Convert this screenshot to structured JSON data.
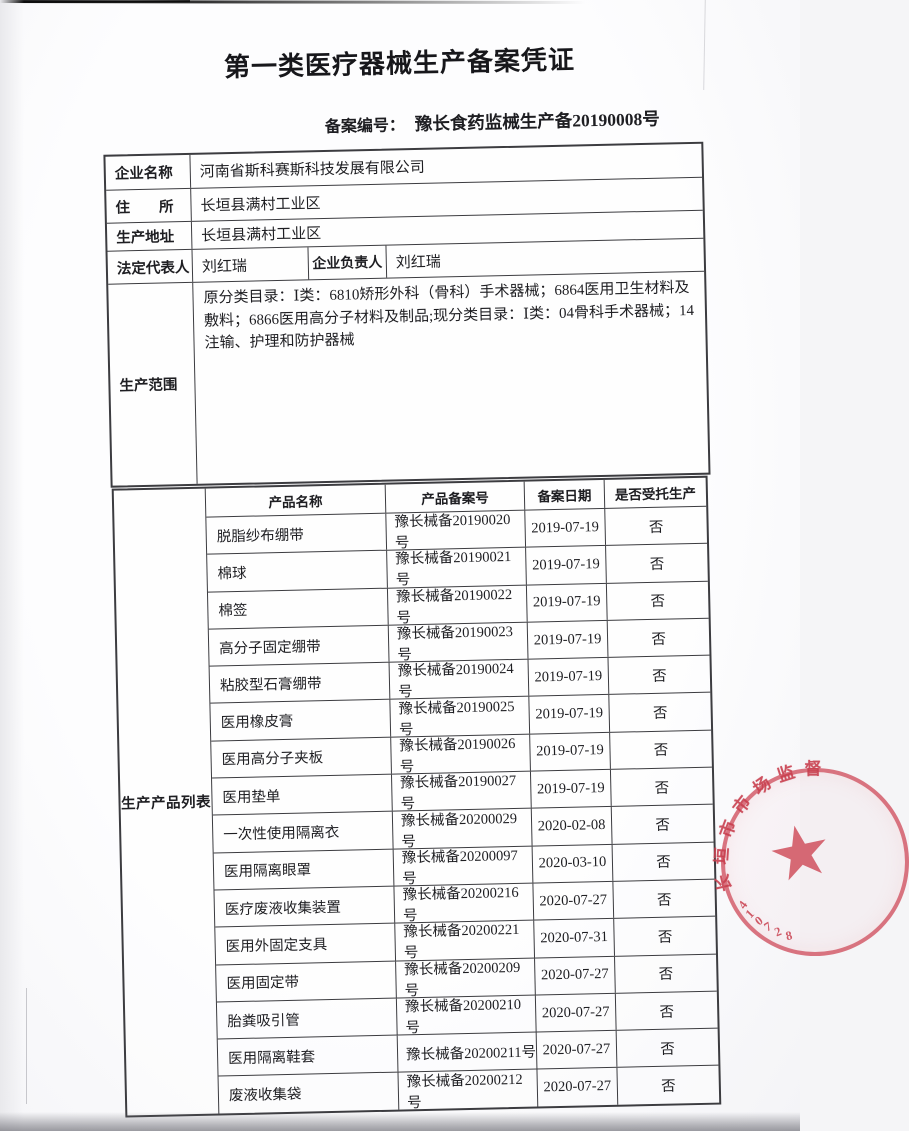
{
  "title": "第一类医疗器械生产备案凭证",
  "record_number": {
    "label": "备案编号：",
    "value": "豫长食药监械生产备20190008号"
  },
  "info_table": {
    "rows": {
      "company": {
        "label": "企业名称",
        "value": "河南省斯科赛斯科技发展有限公司"
      },
      "address": {
        "label": "住　　所",
        "value": "长垣县满村工业区"
      },
      "production_address": {
        "label": "生产地址",
        "value": "长垣县满村工业区"
      },
      "representative": {
        "label": "法定代表人",
        "value": "刘红瑞",
        "label2": "企业负责人",
        "value2": "刘红瑞"
      },
      "scope": {
        "label": "生产范围",
        "value": "原分类目录：Ⅰ类：6810矫形外科（骨科）手术器械；6864医用卫生材料及敷料；6866医用高分子材料及制品;现分类目录：Ⅰ类：04骨科手术器械；14注输、护理和防护器械"
      }
    }
  },
  "product_table": {
    "side_label": "生产产品列表",
    "headers": [
      "产品名称",
      "产品备案号",
      "备案日期",
      "是否受托生产"
    ],
    "rows": [
      [
        "脱脂纱布绷带",
        "豫长械备20190020号",
        "2019-07-19",
        "否"
      ],
      [
        "棉球",
        "豫长械备20190021号",
        "2019-07-19",
        "否"
      ],
      [
        "棉签",
        "豫长械备20190022号",
        "2019-07-19",
        "否"
      ],
      [
        "高分子固定绷带",
        "豫长械备20190023号",
        "2019-07-19",
        "否"
      ],
      [
        "粘胶型石膏绷带",
        "豫长械备20190024号",
        "2019-07-19",
        "否"
      ],
      [
        "医用橡皮膏",
        "豫长械备20190025号",
        "2019-07-19",
        "否"
      ],
      [
        "医用高分子夹板",
        "豫长械备20190026号",
        "2019-07-19",
        "否"
      ],
      [
        "医用垫单",
        "豫长械备20190027号",
        "2019-07-19",
        "否"
      ],
      [
        "一次性使用隔离衣",
        "豫长械备20200029号",
        "2020-02-08",
        "否"
      ],
      [
        "医用隔离眼罩",
        "豫长械备20200097号",
        "2020-03-10",
        "否"
      ],
      [
        "医疗废液收集装置",
        "豫长械备20200216号",
        "2020-07-27",
        "否"
      ],
      [
        "医用外固定支具",
        "豫长械备20200221号",
        "2020-07-31",
        "否"
      ],
      [
        "医用固定带",
        "豫长械备20200209号",
        "2020-07-27",
        "否"
      ],
      [
        "胎粪吸引管",
        "豫长械备20200210号",
        "2020-07-27",
        "否"
      ],
      [
        "医用隔离鞋套",
        "豫长械备20200211号",
        "2020-07-27",
        "否"
      ],
      [
        "废液收集袋",
        "豫长械备20200212号",
        "2020-07-27",
        "否"
      ]
    ]
  },
  "stamp": {
    "visible_text": "长垣市市场监督",
    "visible_code": "410728",
    "star": "★",
    "color": "#c83e4e"
  }
}
